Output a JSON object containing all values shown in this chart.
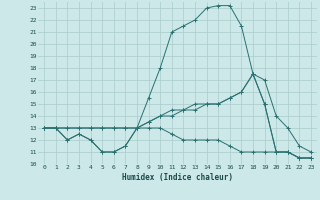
{
  "xlabel": "Humidex (Indice chaleur)",
  "bg_color": "#cce8e8",
  "grid_color": "#aacccc",
  "line_color": "#2a7070",
  "xlim": [
    -0.5,
    23.5
  ],
  "ylim": [
    10,
    23.5
  ],
  "xticks": [
    0,
    1,
    2,
    3,
    4,
    5,
    6,
    7,
    8,
    9,
    10,
    11,
    12,
    13,
    14,
    15,
    16,
    17,
    18,
    19,
    20,
    21,
    22,
    23
  ],
  "yticks": [
    10,
    11,
    12,
    13,
    14,
    15,
    16,
    17,
    18,
    19,
    20,
    21,
    22,
    23
  ],
  "series": {
    "line1": [
      13,
      13,
      12,
      12.5,
      12,
      11,
      11,
      11.5,
      13,
      15.5,
      18,
      21,
      21.5,
      22,
      23,
      23.2,
      23.2,
      21.5,
      17.5,
      15,
      11,
      11,
      10.5,
      10.5
    ],
    "line2": [
      13,
      13,
      12,
      12.5,
      12,
      11,
      11,
      11.5,
      13,
      13.5,
      14,
      14.5,
      14.5,
      15,
      15,
      15,
      15.5,
      16,
      17.5,
      15,
      11,
      11,
      10.5,
      10.5
    ],
    "line3": [
      13,
      13,
      13,
      13,
      13,
      13,
      13,
      13,
      13,
      13.5,
      14,
      14,
      14.5,
      14.5,
      15,
      15,
      15.5,
      16,
      17.5,
      17,
      14,
      13,
      11.5,
      11
    ],
    "line4": [
      13,
      13,
      13,
      13,
      13,
      13,
      13,
      13,
      13,
      13,
      13,
      12.5,
      12,
      12,
      12,
      12,
      11.5,
      11,
      11,
      11,
      11,
      11,
      10.5,
      10.5
    ]
  }
}
